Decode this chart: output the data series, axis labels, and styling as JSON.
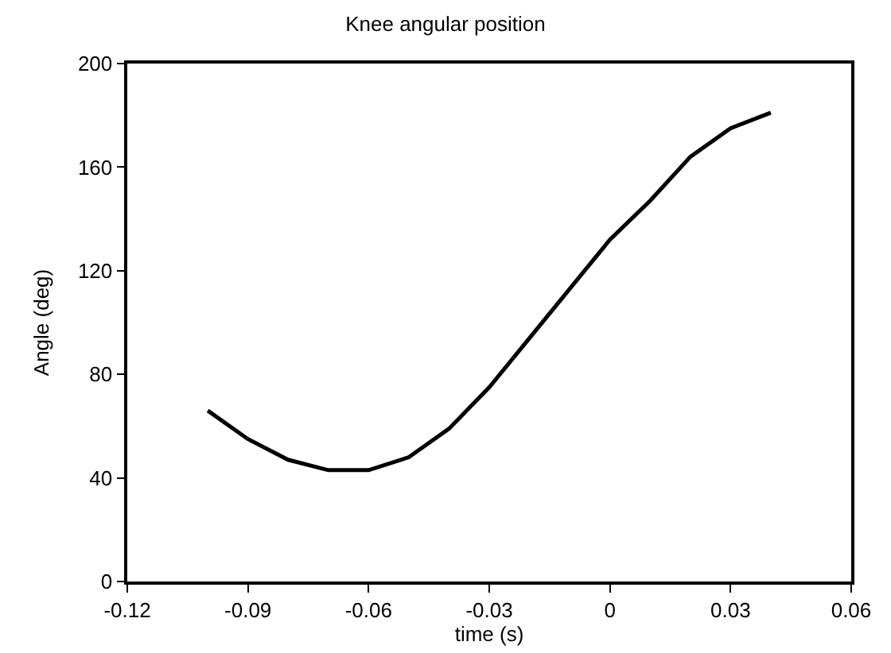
{
  "chart_data": {
    "type": "line",
    "title": "Knee angular position",
    "xlabel": "time (s)",
    "ylabel": "Angle (deg)",
    "x": [
      -0.1,
      -0.09,
      -0.08,
      -0.07,
      -0.06,
      -0.05,
      -0.04,
      -0.03,
      -0.02,
      -0.01,
      0,
      0.01,
      0.02,
      0.03,
      0.04
    ],
    "series": [
      {
        "color": "#000000",
        "values": [
          66,
          55,
          47,
          43,
          43,
          48,
          59,
          75,
          94,
          113,
          132,
          147,
          164,
          175,
          181
        ]
      }
    ],
    "xlim": [
      -0.12,
      0.06
    ],
    "xticks": [
      -0.12,
      -0.09,
      -0.06,
      -0.03,
      0,
      0.03,
      0.06
    ],
    "ylim": [
      0,
      200
    ],
    "yticks": [
      0,
      40,
      80,
      120,
      160,
      200
    ],
    "marker": "none",
    "line_style": "solid"
  }
}
